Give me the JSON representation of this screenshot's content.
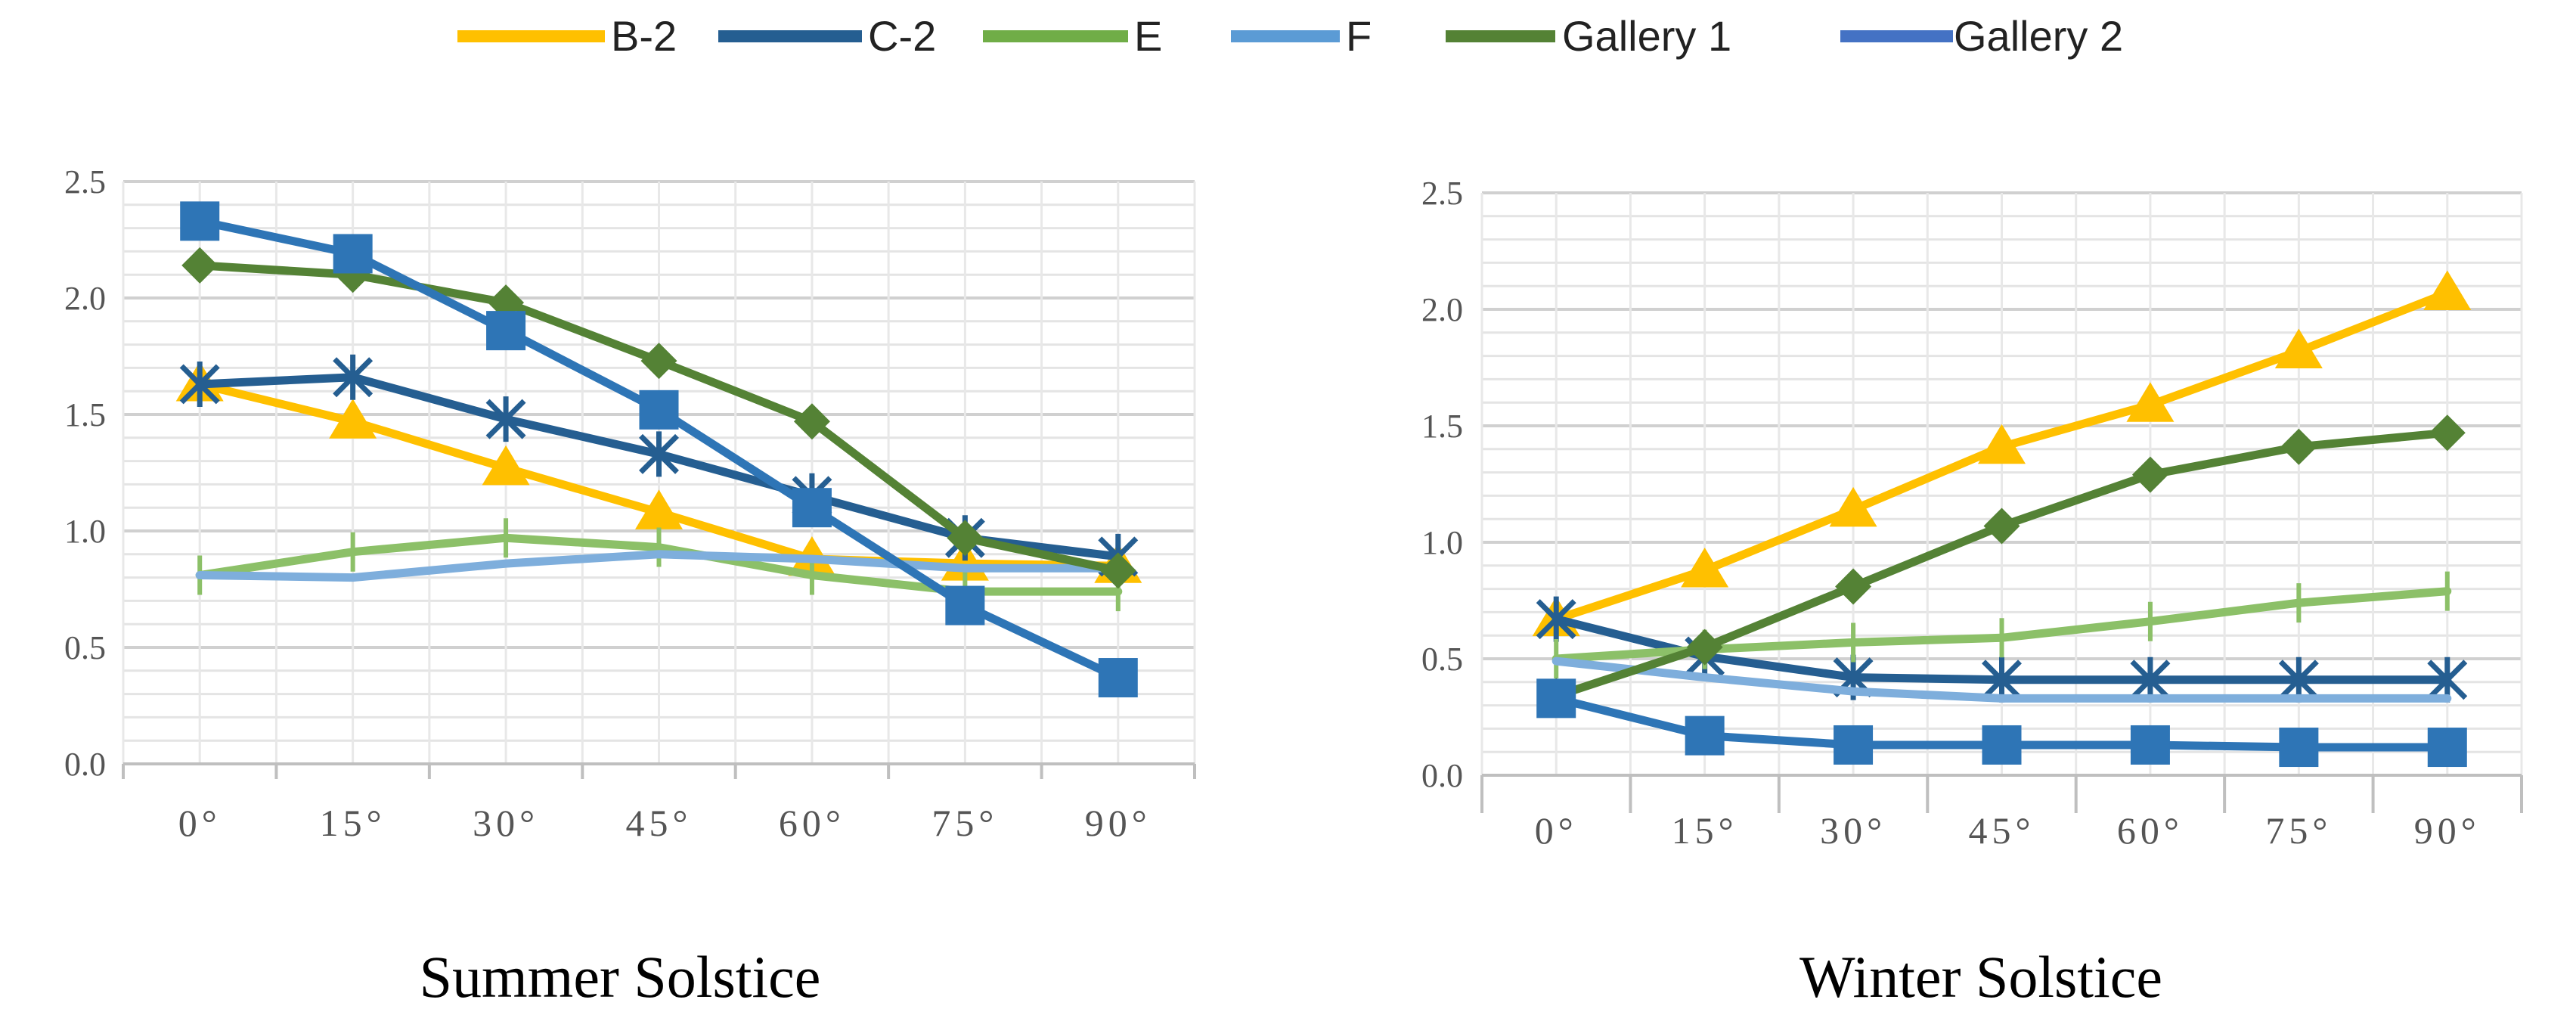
{
  "legend": [
    {
      "name": "B-2",
      "color": "#FFC000"
    },
    {
      "name": "C-2",
      "color": "#255E91"
    },
    {
      "name": "E",
      "color": "#70AD47"
    },
    {
      "name": "F",
      "color": "#5B9BD5"
    },
    {
      "name": "Gallery 1",
      "color": "#548235"
    },
    {
      "name": "Gallery 2",
      "color": "#4472C4"
    }
  ],
  "chart_data": [
    {
      "type": "line",
      "title": "Summer Solstice",
      "categories": [
        "0°",
        "15°",
        "30°",
        "45°",
        "60°",
        "75°",
        "90°"
      ],
      "ylim": [
        0,
        2.5
      ],
      "yticks": [
        "0.0",
        "0.5",
        "1.0",
        "1.5",
        "2.0",
        "2.5"
      ],
      "grid": true,
      "legend": "top",
      "series": [
        {
          "name": "B-2",
          "color": "#FFC000",
          "marker": "triangle",
          "values": [
            1.63,
            1.47,
            1.27,
            1.08,
            0.88,
            0.86,
            0.85
          ]
        },
        {
          "name": "C-2",
          "color": "#255E91",
          "marker": "star",
          "values": [
            1.63,
            1.66,
            1.48,
            1.33,
            1.15,
            0.97,
            0.89
          ]
        },
        {
          "name": "E",
          "color": "#8CC068",
          "marker": "plus",
          "values": [
            0.81,
            0.91,
            0.97,
            0.93,
            0.81,
            0.74,
            0.74
          ]
        },
        {
          "name": "F",
          "color": "#7EAEDC",
          "marker": "none",
          "values": [
            0.81,
            0.8,
            0.86,
            0.9,
            0.88,
            0.84,
            0.84
          ]
        },
        {
          "name": "Gallery 1",
          "color": "#548235",
          "marker": "diamond",
          "values": [
            2.14,
            2.1,
            1.98,
            1.73,
            1.47,
            0.97,
            0.83
          ]
        },
        {
          "name": "Gallery 2",
          "color": "#2E75B6",
          "marker": "square",
          "values": [
            2.33,
            2.19,
            1.86,
            1.52,
            1.1,
            0.68,
            0.37
          ]
        }
      ]
    },
    {
      "type": "line",
      "title": "Winter Solstice",
      "categories": [
        "0°",
        "15°",
        "30°",
        "45°",
        "60°",
        "75°",
        "90°"
      ],
      "ylim": [
        0,
        2.5
      ],
      "yticks": [
        "0.0",
        "0.5",
        "1.0",
        "1.5",
        "2.0",
        "2.5"
      ],
      "grid": true,
      "legend": "top",
      "series": [
        {
          "name": "B-2",
          "color": "#FFC000",
          "marker": "triangle",
          "values": [
            0.67,
            0.88,
            1.14,
            1.41,
            1.59,
            1.82,
            2.07
          ]
        },
        {
          "name": "C-2",
          "color": "#255E91",
          "marker": "star",
          "values": [
            0.67,
            0.51,
            0.42,
            0.41,
            0.41,
            0.41,
            0.41
          ]
        },
        {
          "name": "E",
          "color": "#8CC068",
          "marker": "plus",
          "values": [
            0.5,
            0.54,
            0.57,
            0.59,
            0.66,
            0.74,
            0.79
          ]
        },
        {
          "name": "F",
          "color": "#7EAEDC",
          "marker": "none",
          "values": [
            0.49,
            0.42,
            0.36,
            0.33,
            0.33,
            0.33,
            0.33
          ]
        },
        {
          "name": "Gallery 1",
          "color": "#548235",
          "marker": "diamond",
          "values": [
            0.34,
            0.55,
            0.81,
            1.07,
            1.29,
            1.41,
            1.47
          ]
        },
        {
          "name": "Gallery 2",
          "color": "#2E75B6",
          "marker": "square",
          "values": [
            0.33,
            0.17,
            0.13,
            0.13,
            0.13,
            0.12,
            0.12
          ]
        }
      ]
    }
  ]
}
